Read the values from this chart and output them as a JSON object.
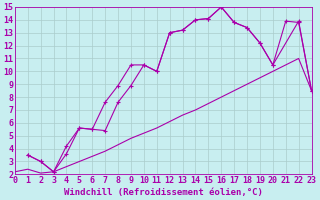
{
  "background_color": "#c8eef0",
  "grid_color": "#aacccc",
  "line_color": "#aa00aa",
  "marker": "+",
  "xlim": [
    0,
    23
  ],
  "ylim": [
    2,
    15
  ],
  "xticks": [
    0,
    1,
    2,
    3,
    4,
    5,
    6,
    7,
    8,
    9,
    10,
    11,
    12,
    13,
    14,
    15,
    16,
    17,
    18,
    19,
    20,
    21,
    22,
    23
  ],
  "yticks": [
    2,
    3,
    4,
    5,
    6,
    7,
    8,
    9,
    10,
    11,
    12,
    13,
    14,
    15
  ],
  "xlabel": "Windchill (Refroidissement éolien,°C)",
  "line1_x": [
    1,
    2,
    3,
    4,
    5,
    6,
    7,
    8,
    9,
    10,
    11,
    12,
    13,
    14,
    15,
    16,
    17,
    18,
    19,
    20,
    21,
    22,
    23
  ],
  "line1_y": [
    3.5,
    3.0,
    2.2,
    4.2,
    5.6,
    5.5,
    5.4,
    7.6,
    8.9,
    10.5,
    10.0,
    13.0,
    13.2,
    14.0,
    14.1,
    15.0,
    13.8,
    13.4,
    12.2,
    10.5,
    13.9,
    13.8,
    8.5
  ],
  "line2_x": [
    1,
    2,
    3,
    4,
    5,
    6,
    7,
    8,
    9,
    10,
    11,
    12,
    13,
    14,
    15,
    16,
    17,
    18,
    19,
    20,
    22,
    23
  ],
  "line2_y": [
    3.5,
    3.0,
    2.2,
    3.6,
    5.6,
    5.5,
    7.6,
    8.9,
    10.5,
    10.5,
    10.0,
    13.0,
    13.2,
    14.0,
    14.1,
    15.0,
    13.8,
    13.4,
    12.2,
    10.5,
    13.9,
    8.5
  ],
  "line3_x": [
    0,
    1,
    2,
    3,
    4,
    5,
    6,
    7,
    8,
    9,
    10,
    11,
    12,
    13,
    14,
    15,
    16,
    17,
    18,
    19,
    20,
    21,
    22,
    23
  ],
  "line3_y": [
    2.2,
    2.4,
    2.1,
    2.2,
    2.6,
    3.0,
    3.4,
    3.8,
    4.3,
    4.8,
    5.2,
    5.6,
    6.1,
    6.6,
    7.0,
    7.5,
    8.0,
    8.5,
    9.0,
    9.5,
    10.0,
    10.5,
    11.0,
    8.5
  ],
  "fontsize_xlabel": 6.5,
  "fontsize_ticks": 6.0
}
